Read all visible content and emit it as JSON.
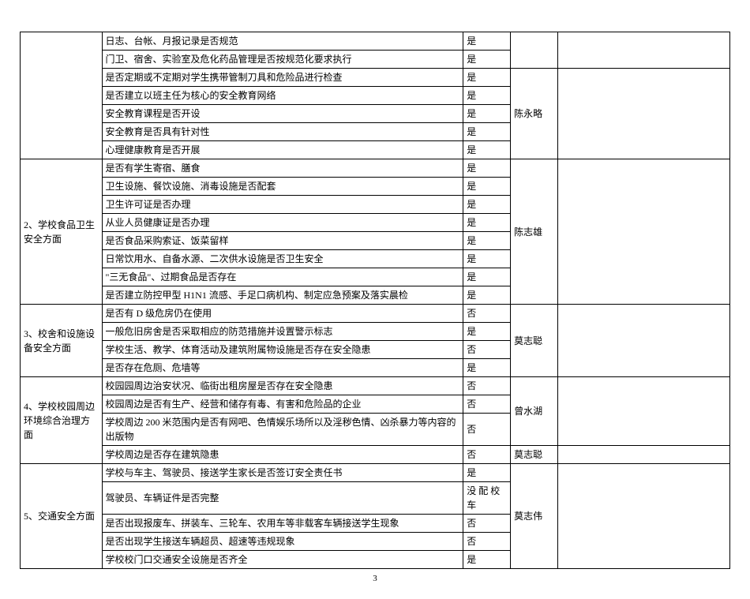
{
  "page_number": "3",
  "sections": [
    {
      "category": "",
      "rows": [
        {
          "desc": "日志、台帐、月报记录是否规范",
          "ans": "是",
          "person": ""
        },
        {
          "desc": "门卫、宿舍、实验室及危化药品管理是否按规范化要求执行",
          "ans": "是",
          "person": ""
        },
        {
          "desc": "是否定期或不定期对学生携带管制刀具和危险品进行检查",
          "ans": "是",
          "person": ""
        },
        {
          "desc": "是否建立以班主任为核心的安全教育网络",
          "ans": "是",
          "person": ""
        },
        {
          "desc": "安全教育课程是否开设",
          "ans": "是",
          "person": "陈永略"
        },
        {
          "desc": "安全教育是否具有针对性",
          "ans": " 是",
          "person": ""
        },
        {
          "desc": "心理健康教育是否开展",
          "ans": "是",
          "person": ""
        }
      ]
    },
    {
      "category": "2、学校食品卫生安全方面",
      "rows": [
        {
          "desc": "是否有学生寄宿、膳食",
          "ans": "是",
          "person": ""
        },
        {
          "desc": "卫生设施、餐饮设施、消毒设施是否配套",
          "ans": "是",
          "person": ""
        },
        {
          "desc": "卫生许可证是否办理",
          "ans": "是",
          "person": ""
        },
        {
          "desc": "从业人员健康证是否办理",
          "ans": "是",
          "person": "陈志雄"
        },
        {
          "desc": "是否食品采购索证、饭菜留样",
          "ans": "是",
          "person": ""
        },
        {
          "desc": "日常饮用水、自备水源、二次供水设施是否卫生安全",
          "ans": "是",
          "person": ""
        },
        {
          "desc": "\"三无食品\"、过期食品是否存在",
          "ans": "是",
          "person": ""
        },
        {
          "desc": "是否建立防控甲型 H1N1 流感、手足口病机构、制定应急预案及落实晨检",
          "ans": "是",
          "person": ""
        }
      ]
    },
    {
      "category": "3、校舍和设施设备安全方面",
      "rows": [
        {
          "desc": "是否有 D 级危房仍在使用",
          "ans": "否",
          "person": ""
        },
        {
          "desc": "一般危旧房舍是否采取相应的防范措施并设置警示标志",
          "ans": "是",
          "person": ""
        },
        {
          "desc": "学校生活、教学、体育活动及建筑附属物设施是否存在安全隐患",
          "ans": "否",
          "person": "莫志聪"
        },
        {
          "desc": "是否存在危厕、危墙等",
          "ans": "是",
          "person": ""
        }
      ]
    },
    {
      "category": "4、学校校园周边环境综合治理方面",
      "rows": [
        {
          "desc": "校园园周边治安状况、临街出租房屋是否存在安全隐患",
          "ans": "否",
          "person": ""
        },
        {
          "desc": "校园周边是否有生产、经营和储存有毒、有害和危险品的企业",
          "ans": "否",
          "person": "曾水湖"
        },
        {
          "desc": "学校周边 200 米范围内是否有网吧、色情娱乐场所以及淫秽色情、凶杀暴力等内容的出版物",
          "ans": "否",
          "person": ""
        },
        {
          "desc": "学校周边是否存在建筑隐患",
          "ans": "否",
          "person_single": "莫志聪"
        }
      ]
    },
    {
      "category": "5、交通安全方面",
      "rows": [
        {
          "desc": "学校与车主、驾驶员、接送学生家长是否签订安全责任书",
          "ans": "是",
          "person": ""
        },
        {
          "desc": "驾驶员、车辆证件是否完整",
          "ans": "没 配 校车",
          "person": ""
        },
        {
          "desc": "是否出现报废车、拼装车、三轮车、农用车等非载客车辆接送学生现象",
          "ans": "否",
          "person": "莫志伟"
        },
        {
          "desc": "是否出现学生接送车辆超员、超速等违规现象",
          "ans": "否",
          "person": ""
        },
        {
          "desc": "学校校门口交通安全设施是否齐全",
          "ans": "是",
          "person": ""
        }
      ]
    }
  ]
}
